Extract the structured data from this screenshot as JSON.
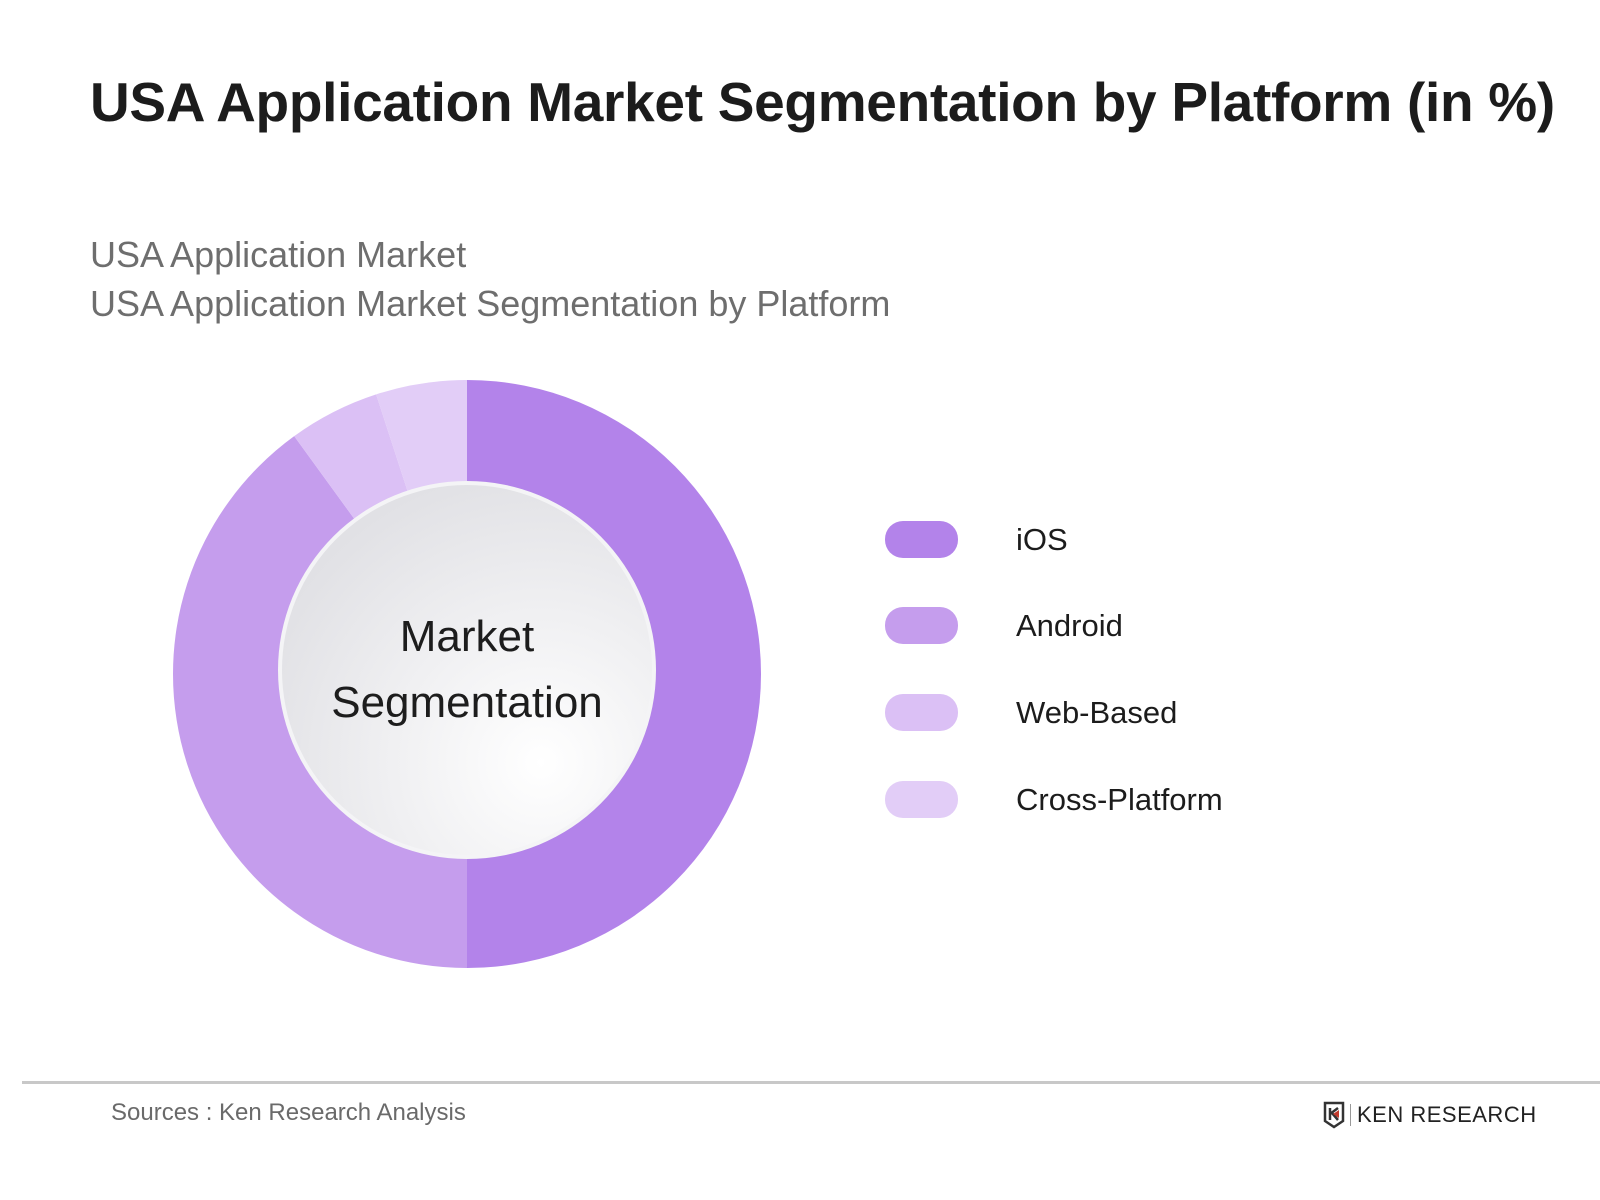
{
  "header": {
    "title": "USA Application Market Segmentation by Platform (in %)",
    "subtitle_line1": "USA Application Market",
    "subtitle_line2": "USA Application Market Segmentation by Platform"
  },
  "center_label": {
    "line1": "Market",
    "line2": "Segmentation"
  },
  "legend": [
    {
      "label": "iOS",
      "color": "#b383ea"
    },
    {
      "label": "Android",
      "color": "#c59ded"
    },
    {
      "label": "Web-Based",
      "color": "#dbc0f5"
    },
    {
      "label": "Cross-Platform",
      "color": "#e2cdf7"
    }
  ],
  "footer": {
    "sources": "Sources : Ken Research Analysis",
    "logo_text": "KEN RESEARCH"
  },
  "chart_data": {
    "type": "pie",
    "subtype": "donut",
    "title": "USA Application Market Segmentation by Platform (in %)",
    "subtitle": "USA Application Market Segmentation by Platform",
    "categories": [
      "iOS",
      "Android",
      "Web-Based",
      "Cross-Platform"
    ],
    "values": [
      50,
      40,
      5,
      5
    ],
    "colors": [
      "#b383ea",
      "#c59ded",
      "#dbc0f5",
      "#e2cdf7"
    ],
    "center_text": "Market Segmentation",
    "legend_position": "right",
    "start_angle": "12 o'clock, clockwise"
  }
}
